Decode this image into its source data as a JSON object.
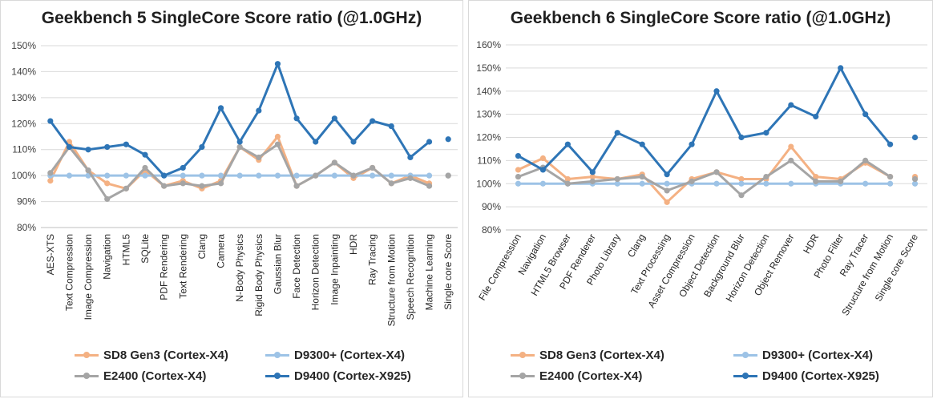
{
  "chart_data": [
    {
      "type": "line",
      "title": "Geekbench 5 SingleCore Score ratio (@1.0GHz)",
      "xlabel": "",
      "ylabel": "",
      "ylim": [
        0.8,
        1.5
      ],
      "yticks": [
        "80%",
        "90%",
        "100%",
        "110%",
        "120%",
        "130%",
        "140%",
        "150%"
      ],
      "categories": [
        "AES-XTS",
        "Text Compression",
        "Image Compression",
        "Navigation",
        "HTML5",
        "SQLite",
        "PDF Rendering",
        "Text Rendering",
        "Clang",
        "Camera",
        "N-Body Physics",
        "Rigid Body Physics",
        "Gaussian Blur",
        "Face Detection",
        "Horizon Detection",
        "Image Inpainting",
        "HDR",
        "Ray Tracing",
        "Structure from Motion",
        "Speech Recognition",
        "Machine Learning",
        "Single core Score"
      ],
      "connect_last": false,
      "grid": true,
      "series": [
        {
          "name": "SD8 Gen3 (Cortex-X4)",
          "color": "#f4b183",
          "values": [
            0.98,
            1.13,
            1.02,
            0.97,
            0.95,
            1.02,
            0.96,
            0.98,
            0.95,
            0.98,
            1.11,
            1.06,
            1.15,
            0.96,
            1.0,
            1.05,
            0.99,
            1.03,
            0.97,
            1.0,
            0.97,
            1.0
          ]
        },
        {
          "name": "D9300+ (Cortex-X4)",
          "color": "#9dc3e6",
          "values": [
            1.0,
            1.0,
            1.0,
            1.0,
            1.0,
            1.0,
            1.0,
            1.0,
            1.0,
            1.0,
            1.0,
            1.0,
            1.0,
            1.0,
            1.0,
            1.0,
            1.0,
            1.0,
            1.0,
            1.0,
            1.0,
            1.0
          ]
        },
        {
          "name": "E2400 (Cortex-X4)",
          "color": "#a5a5a5",
          "values": [
            1.01,
            1.11,
            1.02,
            0.91,
            0.95,
            1.03,
            0.96,
            0.97,
            0.96,
            0.97,
            1.11,
            1.07,
            1.12,
            0.96,
            1.0,
            1.05,
            1.0,
            1.03,
            0.97,
            0.99,
            0.96,
            1.0
          ]
        },
        {
          "name": "D9400 (Cortex-X925)",
          "color": "#2e75b6",
          "values": [
            1.21,
            1.11,
            1.1,
            1.11,
            1.12,
            1.08,
            1.0,
            1.03,
            1.11,
            1.26,
            1.13,
            1.25,
            1.43,
            1.22,
            1.13,
            1.22,
            1.13,
            1.21,
            1.19,
            1.07,
            1.13,
            1.14
          ]
        }
      ]
    },
    {
      "type": "line",
      "title": "Geekbench 6 SingleCore Score ratio (@1.0GHz)",
      "xlabel": "",
      "ylabel": "",
      "ylim": [
        0.8,
        1.6
      ],
      "yticks": [
        "80%",
        "90%",
        "100%",
        "110%",
        "120%",
        "130%",
        "140%",
        "150%",
        "160%"
      ],
      "categories": [
        "File Compression",
        "Navigation",
        "HTML5 Browser",
        "PDF Renderer",
        "Photo Library",
        "Clang",
        "Text Processing",
        "Asset Compression",
        "Object Detection",
        "Background Blur",
        "Horizon Detection",
        "Object Remover",
        "HDR",
        "Photo Filter",
        "Ray Tracer",
        "Structure from Motion",
        "Single core Score"
      ],
      "connect_last": false,
      "grid": true,
      "series": [
        {
          "name": "SD8 Gen3 (Cortex-X4)",
          "color": "#f4b183",
          "values": [
            1.06,
            1.11,
            1.02,
            1.03,
            1.02,
            1.04,
            0.92,
            1.02,
            1.05,
            1.02,
            1.02,
            1.16,
            1.03,
            1.02,
            1.09,
            1.03,
            1.03
          ]
        },
        {
          "name": "D9300+ (Cortex-X4)",
          "color": "#9dc3e6",
          "values": [
            1.0,
            1.0,
            1.0,
            1.0,
            1.0,
            1.0,
            1.0,
            1.0,
            1.0,
            1.0,
            1.0,
            1.0,
            1.0,
            1.0,
            1.0,
            1.0,
            1.0
          ]
        },
        {
          "name": "E2400 (Cortex-X4)",
          "color": "#a5a5a5",
          "values": [
            1.03,
            1.07,
            1.0,
            1.01,
            1.02,
            1.03,
            0.97,
            1.01,
            1.05,
            0.95,
            1.03,
            1.1,
            1.01,
            1.01,
            1.1,
            1.03,
            1.02
          ]
        },
        {
          "name": "D9400 (Cortex-X925)",
          "color": "#2e75b6",
          "values": [
            1.12,
            1.06,
            1.17,
            1.05,
            1.22,
            1.17,
            1.04,
            1.17,
            1.4,
            1.2,
            1.22,
            1.34,
            1.29,
            1.5,
            1.3,
            1.17,
            1.2
          ]
        }
      ]
    }
  ]
}
